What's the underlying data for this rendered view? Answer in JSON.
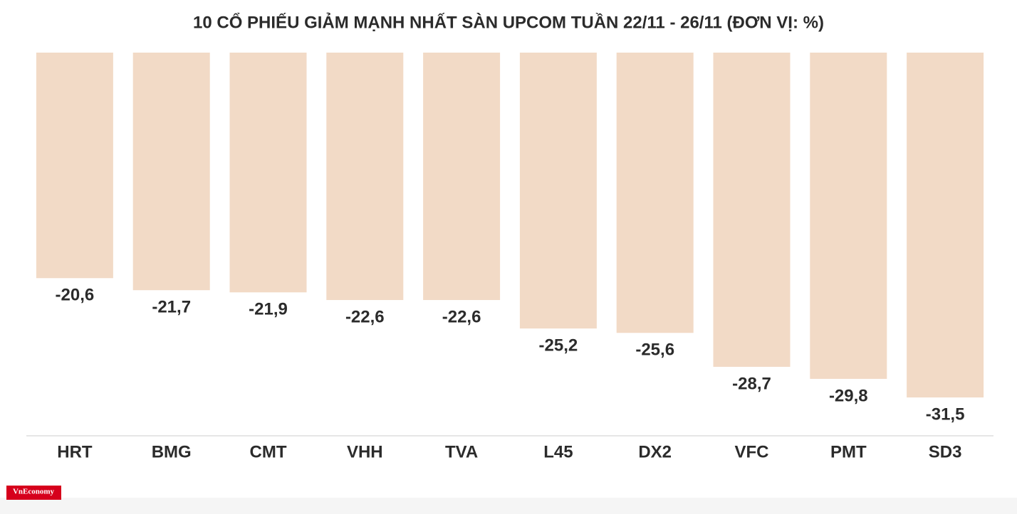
{
  "chart_data": {
    "type": "bar",
    "title": "10 CỔ PHIẾU GIẢM MẠNH NHẤT SÀN UPCOM TUẦN 22/11 - 26/11 (ĐƠN VỊ: %)",
    "categories": [
      "HRT",
      "BMG",
      "CMT",
      "VHH",
      "TVA",
      "L45",
      "DX2",
      "VFC",
      "PMT",
      "SD3"
    ],
    "values": [
      -20.6,
      -21.7,
      -21.9,
      -22.6,
      -22.6,
      -25.2,
      -25.6,
      -28.7,
      -29.8,
      -31.5
    ],
    "value_labels": [
      "-20,6",
      "-21,7",
      "-21,9",
      "-22,6",
      "-22,6",
      "-25,2",
      "-25,6",
      "-28,7",
      "-29,8",
      "-31,5"
    ],
    "color": "#f2dac6",
    "ylim": [
      -35,
      0
    ],
    "source": "VnEconomy"
  }
}
